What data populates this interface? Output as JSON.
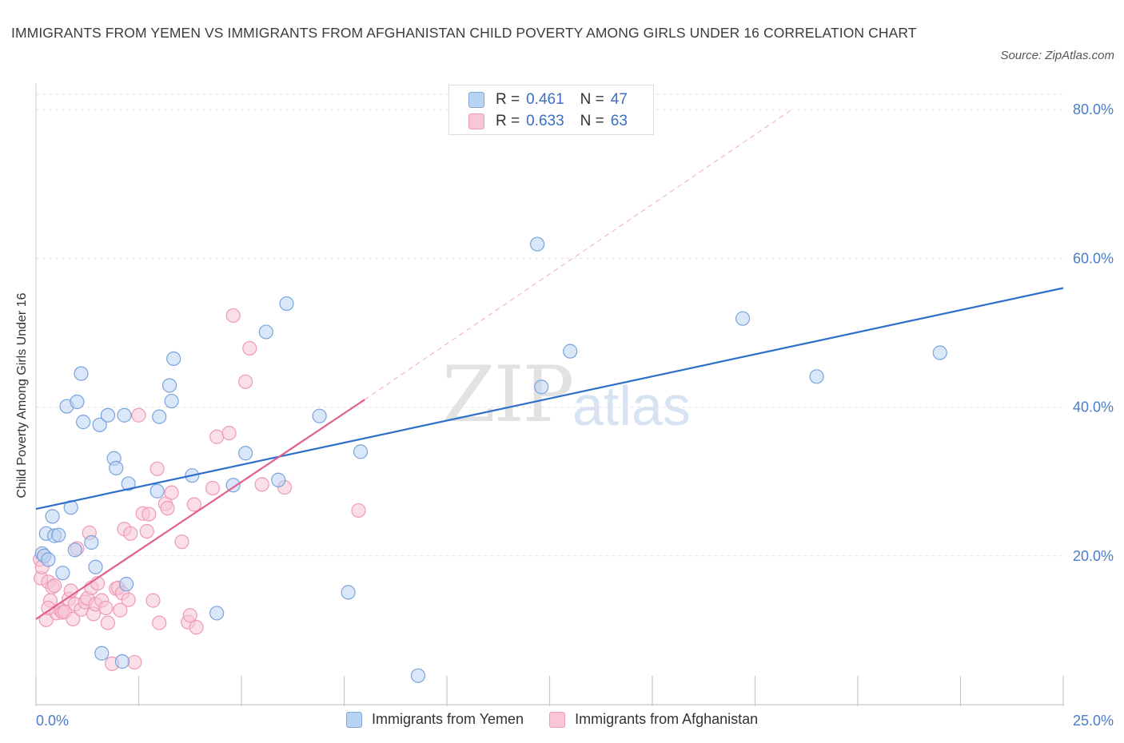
{
  "header": {
    "title": "IMMIGRANTS FROM YEMEN VS IMMIGRANTS FROM AFGHANISTAN CHILD POVERTY AMONG GIRLS UNDER 16 CORRELATION CHART",
    "source": "Source: ZipAtlas.com"
  },
  "watermark": {
    "zip": "ZIP",
    "atlas": "atlas"
  },
  "legend": {
    "r_label": "R =",
    "n_label": "N =",
    "rows": [
      {
        "r": "0.461",
        "n": "47",
        "fill": "#b9d3f5",
        "stroke": "#7ea6e0"
      },
      {
        "r": "0.633",
        "n": "63",
        "fill": "#f9c6d6",
        "stroke": "#ef9ab6"
      }
    ]
  },
  "bottom_legend": {
    "series1": "Immigrants from Yemen",
    "series2": "Immigrants from Afghanistan"
  },
  "colors": {
    "yemen_fill": "#bcd4f3",
    "yemen_stroke": "#7aa3de",
    "yemen_line": "#2d6fcb",
    "afgh_fill": "#f7c4d4",
    "afgh_stroke": "#ee9ab6",
    "afgh_line": "#e0608e",
    "grid": "#e3e3e3",
    "tick_text": "#4a7cc8"
  },
  "chart_data": {
    "type": "scatter",
    "title": "IMMIGRANTS FROM YEMEN VS IMMIGRANTS FROM AFGHANISTAN CHILD POVERTY AMONG GIRLS UNDER 16 CORRELATION CHART",
    "xlabel": "",
    "ylabel": "Child Poverty Among Girls Under 16",
    "xlim": [
      0,
      25
    ],
    "ylim": [
      0,
      80
    ],
    "x_ticks": [
      "0.0%",
      "25.0%"
    ],
    "y_ticks": [
      {
        "value": 20,
        "label": "20.0%"
      },
      {
        "value": 40,
        "label": "40.0%"
      },
      {
        "value": 60,
        "label": "60.0%"
      },
      {
        "value": 80,
        "label": "80.0%"
      }
    ],
    "grid": true,
    "series": [
      {
        "name": "Immigrants from Yemen",
        "r": 0.461,
        "n": 47,
        "trend": {
          "x": [
            0,
            25
          ],
          "y": [
            26.3,
            56.0
          ]
        },
        "points": [
          [
            0.15,
            20.3
          ],
          [
            0.2,
            20.0
          ],
          [
            0.25,
            23.0
          ],
          [
            0.3,
            19.5
          ],
          [
            0.4,
            25.3
          ],
          [
            0.45,
            22.7
          ],
          [
            0.55,
            22.8
          ],
          [
            0.65,
            17.7
          ],
          [
            0.75,
            40.1
          ],
          [
            0.85,
            26.5
          ],
          [
            0.95,
            20.8
          ],
          [
            1.0,
            40.7
          ],
          [
            1.1,
            44.5
          ],
          [
            1.15,
            38.0
          ],
          [
            1.35,
            21.8
          ],
          [
            1.45,
            18.5
          ],
          [
            1.55,
            37.6
          ],
          [
            1.6,
            6.9
          ],
          [
            1.75,
            38.9
          ],
          [
            1.9,
            33.1
          ],
          [
            1.95,
            31.8
          ],
          [
            2.1,
            5.8
          ],
          [
            2.15,
            38.9
          ],
          [
            2.2,
            16.2
          ],
          [
            2.25,
            29.7
          ],
          [
            2.95,
            28.7
          ],
          [
            3.0,
            38.7
          ],
          [
            3.25,
            42.9
          ],
          [
            3.3,
            40.8
          ],
          [
            3.35,
            46.5
          ],
          [
            3.8,
            30.8
          ],
          [
            4.4,
            12.3
          ],
          [
            4.8,
            29.5
          ],
          [
            5.1,
            33.8
          ],
          [
            5.6,
            50.1
          ],
          [
            5.9,
            30.2
          ],
          [
            6.1,
            53.9
          ],
          [
            6.9,
            38.8
          ],
          [
            7.6,
            15.1
          ],
          [
            7.9,
            34.0
          ],
          [
            9.3,
            3.9
          ],
          [
            12.2,
            61.9
          ],
          [
            12.3,
            42.7
          ],
          [
            13.0,
            47.5
          ],
          [
            17.2,
            51.9
          ],
          [
            19.0,
            44.1
          ],
          [
            22.0,
            47.3
          ]
        ]
      },
      {
        "name": "Immigrants from Afghanistan",
        "r": 0.633,
        "n": 63,
        "trend": {
          "x": [
            0,
            8.0
          ],
          "y": [
            11.5,
            41.0
          ]
        },
        "trend_extension": {
          "x": [
            8.0,
            18.4
          ],
          "y": [
            41.0,
            80.0
          ]
        },
        "points": [
          [
            0.1,
            19.5
          ],
          [
            0.12,
            17.0
          ],
          [
            0.15,
            18.5
          ],
          [
            0.2,
            20.0
          ],
          [
            0.25,
            11.4
          ],
          [
            0.3,
            16.5
          ],
          [
            0.35,
            14.0
          ],
          [
            0.4,
            15.8
          ],
          [
            0.45,
            16.0
          ],
          [
            0.5,
            12.3
          ],
          [
            0.6,
            12.7
          ],
          [
            0.65,
            12.4
          ],
          [
            0.7,
            12.5
          ],
          [
            0.8,
            14.2
          ],
          [
            0.85,
            15.3
          ],
          [
            0.9,
            11.5
          ],
          [
            0.95,
            13.5
          ],
          [
            1.0,
            21.0
          ],
          [
            1.1,
            12.8
          ],
          [
            1.2,
            13.8
          ],
          [
            1.25,
            14.3
          ],
          [
            1.3,
            23.1
          ],
          [
            1.35,
            15.7
          ],
          [
            1.4,
            12.2
          ],
          [
            1.45,
            13.5
          ],
          [
            1.5,
            16.3
          ],
          [
            1.6,
            14.0
          ],
          [
            1.7,
            13.0
          ],
          [
            1.75,
            11.0
          ],
          [
            1.85,
            5.5
          ],
          [
            1.95,
            15.6
          ],
          [
            2.0,
            15.7
          ],
          [
            2.05,
            12.7
          ],
          [
            2.1,
            15.0
          ],
          [
            2.15,
            23.6
          ],
          [
            2.25,
            14.1
          ],
          [
            2.3,
            23.0
          ],
          [
            2.4,
            5.7
          ],
          [
            2.5,
            38.9
          ],
          [
            2.6,
            25.7
          ],
          [
            2.7,
            23.3
          ],
          [
            2.75,
            25.6
          ],
          [
            2.85,
            14.0
          ],
          [
            2.95,
            31.7
          ],
          [
            3.0,
            11.0
          ],
          [
            3.15,
            27.0
          ],
          [
            3.2,
            26.4
          ],
          [
            3.3,
            28.5
          ],
          [
            3.55,
            21.9
          ],
          [
            3.7,
            11.1
          ],
          [
            3.75,
            12.0
          ],
          [
            3.85,
            26.9
          ],
          [
            3.9,
            10.4
          ],
          [
            4.3,
            29.1
          ],
          [
            4.4,
            36.0
          ],
          [
            4.7,
            36.5
          ],
          [
            4.8,
            52.3
          ],
          [
            5.1,
            43.4
          ],
          [
            5.2,
            47.9
          ],
          [
            5.5,
            29.6
          ],
          [
            6.05,
            29.2
          ],
          [
            7.85,
            26.1
          ],
          [
            0.3,
            13.0
          ]
        ]
      }
    ]
  }
}
